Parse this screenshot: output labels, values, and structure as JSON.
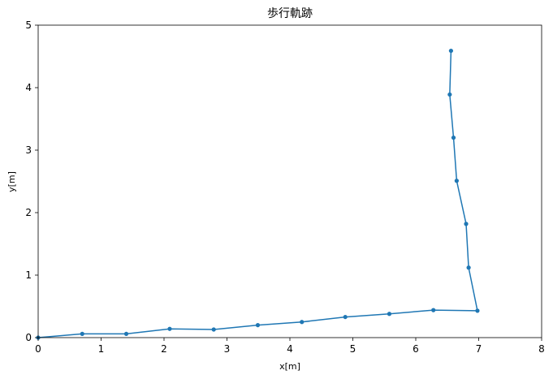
{
  "chart_data": {
    "type": "line",
    "title": "歩行軌跡",
    "xlabel": "x[m]",
    "ylabel": "y[m]",
    "xlim": [
      0,
      8
    ],
    "ylim": [
      0,
      5
    ],
    "xticks": [
      0,
      1,
      2,
      3,
      4,
      5,
      6,
      7,
      8
    ],
    "yticks": [
      0,
      1,
      2,
      3,
      4,
      5
    ],
    "grid": false,
    "legend": "none",
    "series": [
      {
        "color": "#1f77b4",
        "marker": "circle",
        "x": [
          0.0,
          0.7,
          1.4,
          2.09,
          2.79,
          3.49,
          4.19,
          4.88,
          5.58,
          6.28,
          6.98,
          6.84,
          6.8,
          6.65,
          6.6,
          6.54,
          6.56
        ],
        "y": [
          0.0,
          0.06,
          0.06,
          0.14,
          0.13,
          0.2,
          0.25,
          0.33,
          0.38,
          0.44,
          0.43,
          1.12,
          1.82,
          2.51,
          3.2,
          3.89,
          4.59
        ]
      }
    ]
  }
}
